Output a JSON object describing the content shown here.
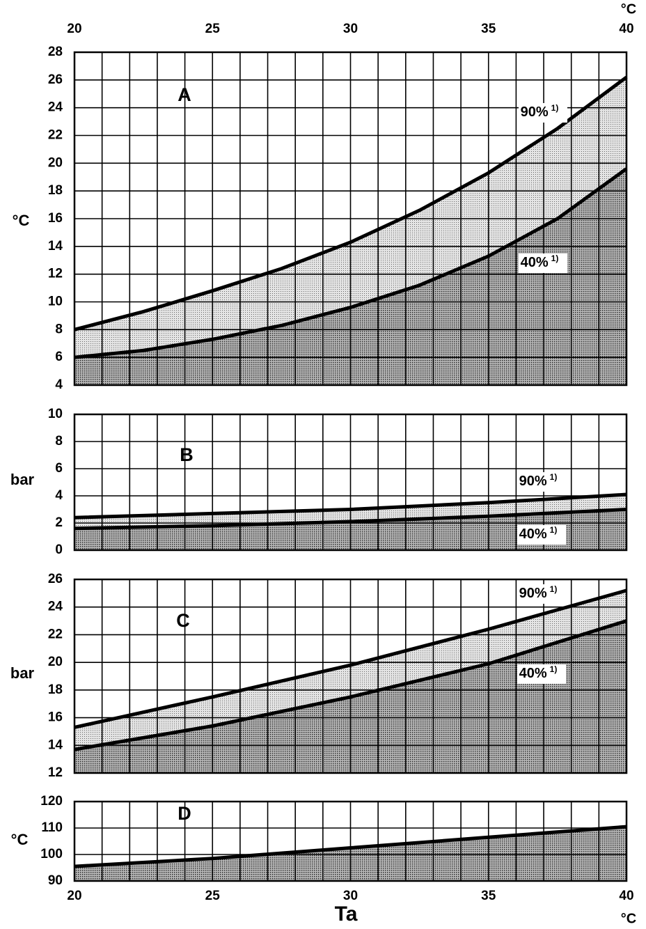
{
  "chart_data": [
    {
      "type": "line",
      "title": "A",
      "ylabel": "°C",
      "xunit": "°C",
      "xtick_labels": "top",
      "xlim": [
        20,
        40
      ],
      "xticks": [
        20,
        25,
        30,
        35,
        40
      ],
      "xgrid_step": 1,
      "ylim": [
        4,
        28
      ],
      "yticks": [
        4,
        6,
        8,
        10,
        12,
        14,
        16,
        18,
        20,
        22,
        24,
        26,
        28
      ],
      "x": [
        20,
        22.5,
        25,
        27.5,
        30,
        32.5,
        35,
        37.5,
        40
      ],
      "series": [
        {
          "name": "90%",
          "footnote": "1)",
          "color": "#000000",
          "fill": "light",
          "values": [
            8,
            9.3,
            10.8,
            12.4,
            14.3,
            16.6,
            19.3,
            22.5,
            26.2
          ]
        },
        {
          "name": "40%",
          "footnote": "1)",
          "color": "#000000",
          "fill": "dark",
          "values": [
            6,
            6.5,
            7.3,
            8.3,
            9.6,
            11.2,
            13.3,
            16,
            19.6
          ]
        }
      ]
    },
    {
      "type": "line",
      "title": "B",
      "ylabel": "bar",
      "xlim": [
        20,
        40
      ],
      "xticks": [
        20,
        25,
        30,
        35,
        40
      ],
      "xgrid_step": 1,
      "ylim": [
        0,
        10
      ],
      "yticks": [
        0,
        2,
        4,
        6,
        8,
        10
      ],
      "x": [
        20,
        25,
        30,
        35,
        40
      ],
      "series": [
        {
          "name": "90%",
          "footnote": "1)",
          "color": "#000000",
          "fill": "light",
          "values": [
            2.4,
            2.7,
            3.0,
            3.5,
            4.1
          ]
        },
        {
          "name": "40%",
          "footnote": "1)",
          "color": "#000000",
          "fill": "dark",
          "values": [
            1.6,
            1.8,
            2.1,
            2.5,
            3.0
          ]
        }
      ]
    },
    {
      "type": "line",
      "title": "C",
      "ylabel": "bar",
      "xlim": [
        20,
        40
      ],
      "xticks": [
        20,
        25,
        30,
        35,
        40
      ],
      "xgrid_step": 1,
      "ylim": [
        12,
        26
      ],
      "yticks": [
        12,
        14,
        16,
        18,
        20,
        22,
        24,
        26
      ],
      "x": [
        20,
        25,
        30,
        35,
        40
      ],
      "series": [
        {
          "name": "90%",
          "footnote": "1)",
          "color": "#000000",
          "fill": "light",
          "values": [
            15.3,
            17.5,
            19.8,
            22.4,
            25.2
          ]
        },
        {
          "name": "40%",
          "footnote": "1)",
          "color": "#000000",
          "fill": "dark",
          "values": [
            13.7,
            15.4,
            17.5,
            19.9,
            23
          ]
        }
      ]
    },
    {
      "type": "line",
      "title": "D",
      "ylabel": "°C",
      "xlabel": "Ta",
      "xunit": "°C",
      "xtick_labels": "bottom",
      "xlim": [
        20,
        40
      ],
      "xticks": [
        20,
        25,
        30,
        35,
        40
      ],
      "xgrid_step": 1,
      "ylim": [
        90,
        120
      ],
      "yticks": [
        90,
        100,
        110,
        120
      ],
      "x": [
        20,
        25,
        30,
        35,
        40
      ],
      "series": [
        {
          "color": "#000000",
          "fill": "dark",
          "values": [
            95.5,
            98.5,
            102.5,
            106.5,
            110.5
          ]
        }
      ]
    }
  ]
}
